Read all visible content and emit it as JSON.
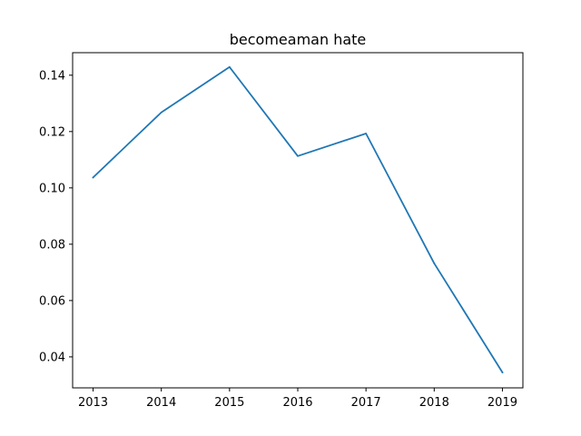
{
  "chart_data": {
    "type": "line",
    "title": "becomeaman hate",
    "xlabel": "",
    "ylabel": "",
    "x": [
      "2013",
      "2014",
      "2015",
      "2016",
      "2017",
      "2018",
      "2019"
    ],
    "series": [
      {
        "values": [
          0.1037,
          0.1268,
          0.1429,
          0.1113,
          0.1193,
          0.0732,
          0.0345
        ],
        "color": "#1f77b4"
      }
    ],
    "xlim": [
      2012.7,
      2019.3
    ],
    "ylim": [
      0.029,
      0.148
    ],
    "yticks": [
      0.04,
      0.06,
      0.08,
      0.1,
      0.12,
      0.14
    ],
    "ytick_labels": [
      "0.04",
      "0.06",
      "0.08",
      "0.10",
      "0.12",
      "0.14"
    ],
    "grid": false,
    "legend": "none"
  }
}
